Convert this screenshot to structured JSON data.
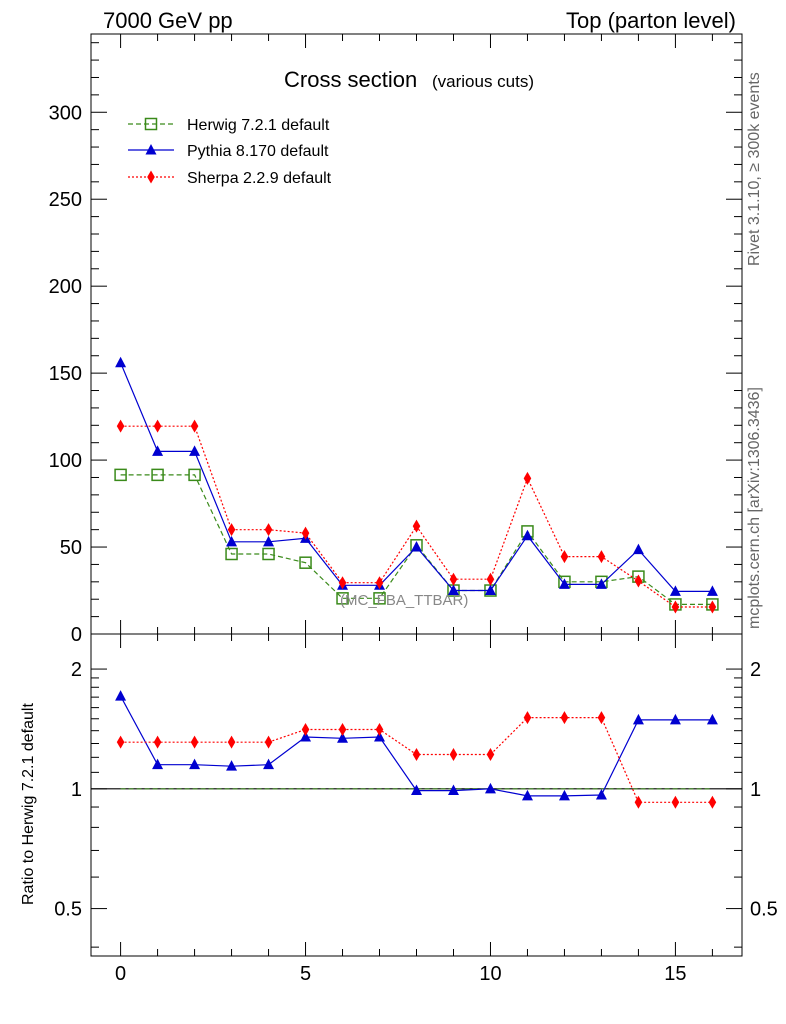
{
  "header": {
    "left": "7000 GeV pp",
    "right": "Top (parton level)"
  },
  "side_labels": {
    "rivet": "Rivet 3.1.10, ≥ 300k events",
    "mcplots": "mcplots.cern.ch [arXiv:1306.3436]"
  },
  "chart_data": [
    {
      "type": "line",
      "title": "Cross section",
      "subtitle": "(various cuts)",
      "annotation": "(MC_FBA_TTBAR)",
      "xlim": [
        -0.8,
        16.8
      ],
      "ylim": [
        0,
        345
      ],
      "x_ticks": [
        0,
        5,
        10,
        15
      ],
      "y_ticks": [
        0,
        50,
        100,
        150,
        200,
        250,
        300
      ],
      "legend_position": "top-left",
      "grid": false,
      "x": [
        0,
        1,
        2,
        3,
        4,
        5,
        6,
        7,
        8,
        9,
        10,
        11,
        12,
        13,
        14,
        15,
        16
      ],
      "series": [
        {
          "name": "Herwig 7.2.1 default",
          "color": "#3a8a1a",
          "marker": "open-square",
          "dash": "dashed",
          "values": [
            91.5,
            91.5,
            91.5,
            46,
            46,
            41,
            20.5,
            20.5,
            51,
            25,
            25,
            59,
            30,
            30,
            33,
            17,
            17
          ]
        },
        {
          "name": "Pythia 8.170 default",
          "color": "#0000d0",
          "marker": "filled-triangle",
          "dash": "solid",
          "values": [
            156,
            105,
            105,
            53,
            53,
            55,
            28,
            28,
            50,
            25,
            25,
            56.5,
            28.5,
            28.5,
            48.5,
            24.5,
            24.5
          ]
        },
        {
          "name": "Sherpa 2.2.9 default",
          "color": "#ff0000",
          "marker": "filled-diamond",
          "dash": "dotted",
          "values": [
            119.5,
            119.5,
            119.5,
            60,
            60,
            58,
            29.5,
            29.5,
            62,
            31.5,
            31.5,
            89.5,
            44.5,
            44.5,
            30.5,
            15.5,
            15.5
          ]
        }
      ]
    },
    {
      "type": "line",
      "ylabel": "Ratio to Herwig 7.2.1 default",
      "scale": "log",
      "xlim": [
        -0.8,
        16.8
      ],
      "ylim": [
        0.38,
        2.45
      ],
      "x_ticks": [
        0,
        5,
        10,
        15
      ],
      "y_ticks": [
        0.5,
        1,
        2
      ],
      "reference_line": 1,
      "x": [
        0,
        1,
        2,
        3,
        4,
        5,
        6,
        7,
        8,
        9,
        10,
        11,
        12,
        13,
        14,
        15,
        16
      ],
      "series": [
        {
          "name": "Pythia 8.170 default",
          "color": "#0000d0",
          "marker": "filled-triangle",
          "dash": "solid",
          "values": [
            1.71,
            1.15,
            1.15,
            1.14,
            1.15,
            1.35,
            1.34,
            1.35,
            0.99,
            0.99,
            1.0,
            0.96,
            0.96,
            0.965,
            1.49,
            1.49,
            1.49
          ]
        },
        {
          "name": "Sherpa 2.2.9 default",
          "color": "#ff0000",
          "marker": "filled-diamond",
          "dash": "dotted",
          "values": [
            1.31,
            1.31,
            1.31,
            1.31,
            1.31,
            1.41,
            1.41,
            1.41,
            1.22,
            1.22,
            1.22,
            1.51,
            1.51,
            1.51,
            0.925,
            0.925,
            0.925
          ]
        }
      ]
    }
  ]
}
